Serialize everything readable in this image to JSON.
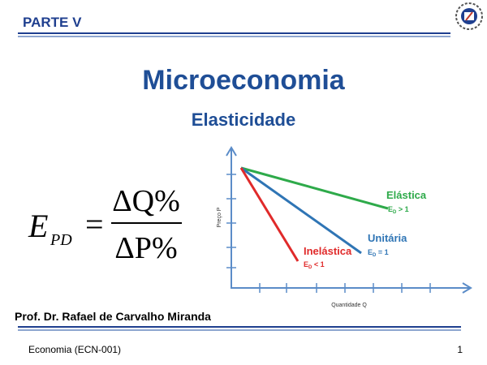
{
  "header": {
    "section": "PARTE V"
  },
  "title": "Microeconomia",
  "subtitle": "Elasticidade",
  "formula": {
    "symbol": "E",
    "subscript": "PD",
    "equals": "=",
    "numerator": "ΔQ%",
    "denominator": "ΔP%"
  },
  "diagram": {
    "y_axis_label": "Preço P",
    "x_axis_label": "Quantidade Q",
    "curves": [
      {
        "label": "Elástica",
        "condition": {
          "symbol": "E",
          "subscript": "D",
          "relation": " > 1"
        }
      },
      {
        "label": "Unitária",
        "condition": {
          "symbol": "E",
          "subscript": "D",
          "relation": " = 1"
        }
      },
      {
        "label": "Inelástica",
        "condition": {
          "symbol": "E",
          "subscript": "D",
          "relation": " < 1"
        }
      }
    ]
  },
  "author": "Prof. Dr. Rafael de Carvalho Miranda",
  "footer": {
    "course": "Economia (ECN-001)",
    "page": "1"
  }
}
